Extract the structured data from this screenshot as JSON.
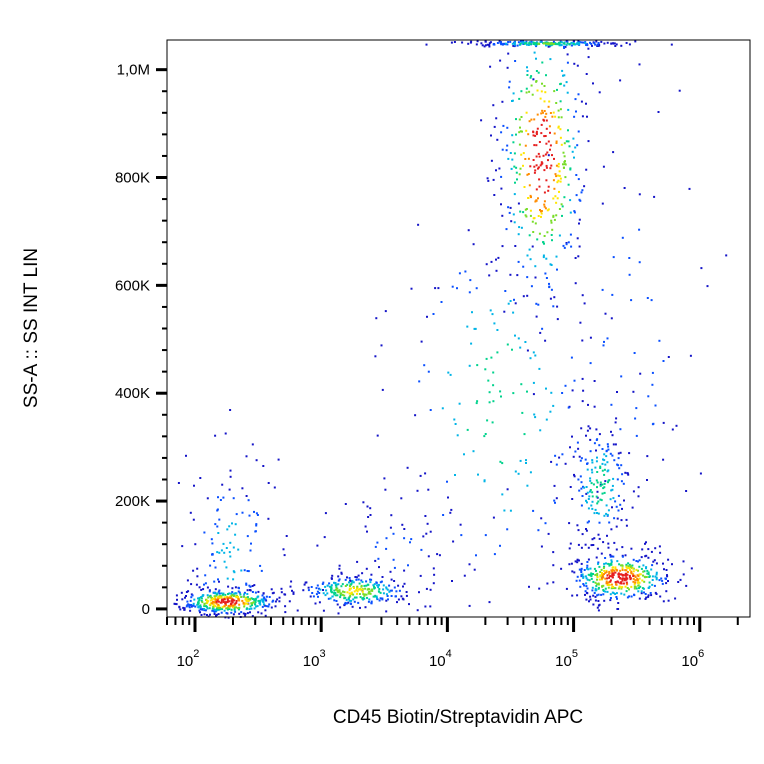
{
  "chart_data": {
    "type": "scatter",
    "title": "",
    "xlabel": "CD45 Biotin/Streptavidin APC",
    "ylabel": "SS-A :: SS INT LIN",
    "x_scale": "log",
    "xlim": [
      60,
      2500000
    ],
    "ylim": [
      -15000,
      1055000
    ],
    "x_ticks": [
      {
        "value": 100,
        "base": "10",
        "exp": "2"
      },
      {
        "value": 1000,
        "base": "10",
        "exp": "3"
      },
      {
        "value": 10000,
        "base": "10",
        "exp": "4"
      },
      {
        "value": 100000,
        "base": "10",
        "exp": "5"
      },
      {
        "value": 1000000,
        "base": "10",
        "exp": "6"
      }
    ],
    "y_ticks": [
      {
        "value": 0,
        "label": "0"
      },
      {
        "value": 200000,
        "label": "200K"
      },
      {
        "value": 400000,
        "label": "400K"
      },
      {
        "value": 600000,
        "label": "600K"
      },
      {
        "value": 800000,
        "label": "800K"
      },
      {
        "value": 1000000,
        "label": "1,0M"
      }
    ],
    "grid": false,
    "legend": "none",
    "color_scale": [
      "#1414c8",
      "#0a50ff",
      "#00b4e6",
      "#00d28c",
      "#78dc28",
      "#ffe600",
      "#ff8c00",
      "#e61e1e"
    ],
    "populations": [
      {
        "x_center": 180,
        "x_spread_decades": 0.2,
        "y_center": 15000,
        "y_spread": 12000,
        "weight": 0.95
      },
      {
        "x_center": 190,
        "x_spread_decades": 0.22,
        "y_center": 110000,
        "y_spread": 90000,
        "weight": 0.3
      },
      {
        "x_center": 1800,
        "x_spread_decades": 0.22,
        "y_center": 35000,
        "y_spread": 15000,
        "weight": 0.65
      },
      {
        "x_center": 4000,
        "x_spread_decades": 0.35,
        "y_center": 110000,
        "y_spread": 60000,
        "weight": 0.15
      },
      {
        "x_center": 25000,
        "x_spread_decades": 0.45,
        "y_center": 380000,
        "y_spread": 200000,
        "weight": 0.45
      },
      {
        "x_center": 55000,
        "x_spread_decades": 0.18,
        "y_center": 840000,
        "y_spread": 140000,
        "weight": 1.0
      },
      {
        "x_center": 230000,
        "x_spread_decades": 0.2,
        "y_center": 60000,
        "y_spread": 22000,
        "weight": 1.0
      },
      {
        "x_center": 160000,
        "x_spread_decades": 0.13,
        "y_center": 230000,
        "y_spread": 60000,
        "weight": 0.45
      },
      {
        "x_center": 250000,
        "x_spread_decades": 0.35,
        "y_center": 500000,
        "y_spread": 250000,
        "weight": 0.2
      },
      {
        "x_center": 60000,
        "x_spread_decades": 0.3,
        "y_center": 1050000,
        "y_spread": 3000,
        "weight": 0.5
      }
    ]
  }
}
